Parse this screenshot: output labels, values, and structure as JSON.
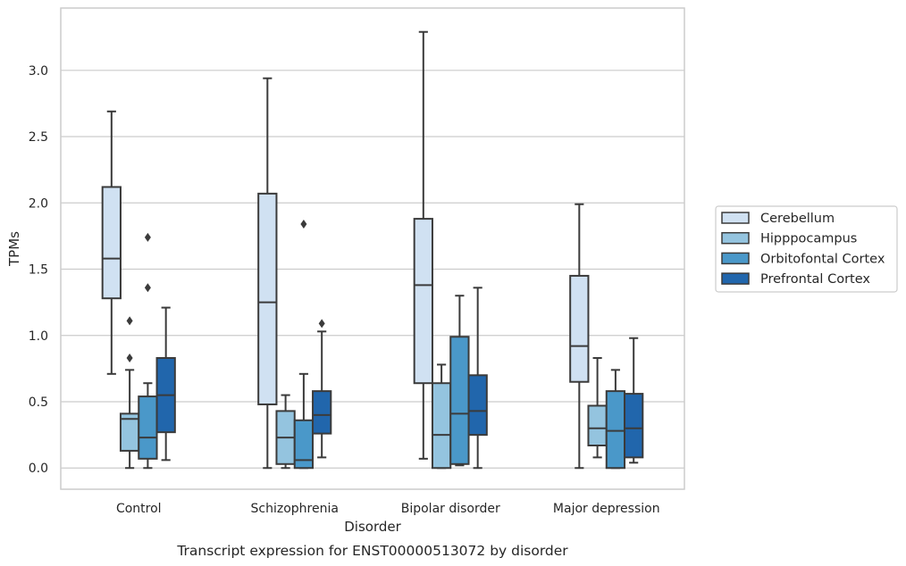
{
  "chart_data": {
    "type": "box",
    "caption": "Transcript expression for ENST00000513072 by disorder",
    "xlabel": "Disorder",
    "ylabel": "TPMs",
    "ylim": [
      -0.16,
      3.47
    ],
    "yticks": [
      "0.0",
      "0.5",
      "1.0",
      "1.5",
      "2.0",
      "2.5",
      "3.0"
    ],
    "grid": "horizontal",
    "legend_position": "right",
    "categories": [
      "Control",
      "Schizophrenia",
      "Bipolar disorder",
      "Major depression"
    ],
    "series": [
      {
        "name": "Cerebellum",
        "color": "#d0e1f2",
        "boxes": [
          {
            "whislo": 0.71,
            "q1": 1.28,
            "med": 1.58,
            "q3": 2.12,
            "whishi": 2.69,
            "fliers": []
          },
          {
            "whislo": 0.0,
            "q1": 0.48,
            "med": 1.25,
            "q3": 2.07,
            "whishi": 2.94,
            "fliers": []
          },
          {
            "whislo": 0.07,
            "q1": 0.64,
            "med": 1.38,
            "q3": 1.88,
            "whishi": 3.29,
            "fliers": []
          },
          {
            "whislo": 0.0,
            "q1": 0.65,
            "med": 0.92,
            "q3": 1.45,
            "whishi": 1.99,
            "fliers": []
          }
        ]
      },
      {
        "name": "Hipppocampus",
        "color": "#94c4df",
        "boxes": [
          {
            "whislo": 0.0,
            "q1": 0.13,
            "med": 0.37,
            "q3": 0.41,
            "whishi": 0.74,
            "fliers": [
              0.83,
              1.11
            ]
          },
          {
            "whislo": 0.0,
            "q1": 0.03,
            "med": 0.23,
            "q3": 0.43,
            "whishi": 0.55,
            "fliers": []
          },
          {
            "whislo": 0.0,
            "q1": 0.0,
            "med": 0.25,
            "q3": 0.64,
            "whishi": 0.78,
            "fliers": []
          },
          {
            "whislo": 0.08,
            "q1": 0.17,
            "med": 0.3,
            "q3": 0.47,
            "whishi": 0.83,
            "fliers": []
          }
        ]
      },
      {
        "name": "Orbitofontal Cortex",
        "color": "#4a98c9",
        "boxes": [
          {
            "whislo": 0.0,
            "q1": 0.07,
            "med": 0.23,
            "q3": 0.54,
            "whishi": 0.64,
            "fliers": [
              1.36,
              1.74
            ]
          },
          {
            "whislo": 0.0,
            "q1": 0.0,
            "med": 0.06,
            "q3": 0.36,
            "whishi": 0.71,
            "fliers": [
              1.84
            ]
          },
          {
            "whislo": 0.02,
            "q1": 0.03,
            "med": 0.41,
            "q3": 0.99,
            "whishi": 1.3,
            "fliers": []
          },
          {
            "whislo": 0.0,
            "q1": 0.0,
            "med": 0.28,
            "q3": 0.58,
            "whishi": 0.74,
            "fliers": []
          }
        ]
      },
      {
        "name": "Prefrontal Cortex",
        "color": "#2166ac",
        "boxes": [
          {
            "whislo": 0.06,
            "q1": 0.27,
            "med": 0.55,
            "q3": 0.83,
            "whishi": 1.21,
            "fliers": []
          },
          {
            "whislo": 0.08,
            "q1": 0.26,
            "med": 0.4,
            "q3": 0.58,
            "whishi": 1.03,
            "fliers": [
              1.09
            ]
          },
          {
            "whislo": 0.0,
            "q1": 0.25,
            "med": 0.43,
            "q3": 0.7,
            "whishi": 1.36,
            "fliers": []
          },
          {
            "whislo": 0.04,
            "q1": 0.08,
            "med": 0.3,
            "q3": 0.56,
            "whishi": 0.98,
            "fliers": []
          }
        ]
      }
    ]
  }
}
